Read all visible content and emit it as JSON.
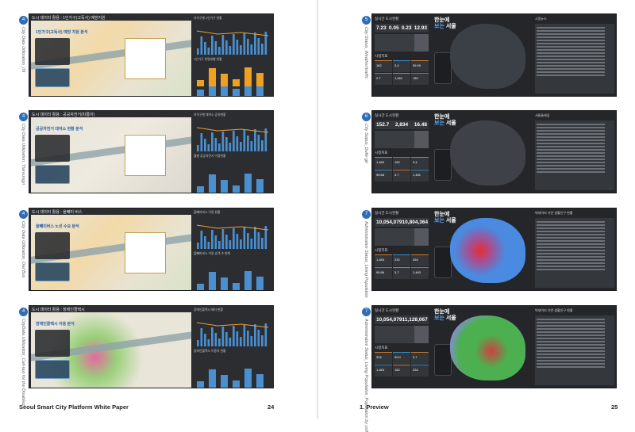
{
  "left_page": {
    "footer_title": "Seoul Smart City Platform White Paper",
    "page_number": "24",
    "entries": [
      {
        "badge": "4",
        "label": "City Data Utilization_09",
        "title": "도시 데이터 활용 : 1인가구(고독사) 예방지원",
        "headline": "1인가구(고독사) 예방 지원 분석",
        "chart1_title": "자치구별 1인가구 현황",
        "chart2_title": "1인가구 연령대별 현황"
      },
      {
        "badge": "4",
        "label": "City Data Utilization_Ttareungyi",
        "title": "도시 데이터 활용 : 공공자전거(따릉이)",
        "headline": "공공자전거 대여소 현황 분석",
        "chart1_title": "자치구별 대여소 공유현황",
        "chart2_title": "월별 공공자전거 이용현황"
      },
      {
        "badge": "4",
        "label": "City Data Utilization_Owl Bus",
        "title": "도시 데이터 활용 : 올빼미 버스",
        "headline": "올빼미버스 노선 수요 분석",
        "chart1_title": "올빼미버스 이용 현황",
        "chart2_title": "올빼미버스 이용 승객 수 변화"
      },
      {
        "badge": "4",
        "label": "CityData Utilization_Call-taxi for the Disabled",
        "title": "도시 데이터 활용 : 장애인콜택시",
        "headline": "장애인콜택시 이용 분석",
        "chart1_title": "장애인콜택시 배차 현황",
        "chart2_title": "장애인콜택시 이용자 현황"
      }
    ]
  },
  "right_page": {
    "footer_title": "1. Preview",
    "page_number": "25",
    "entries": [
      {
        "badge": "5",
        "label": "City Status_Weather/traffic",
        "panel_title": "실시간 도시현황",
        "kpis": [
          "7.23",
          "0.05",
          "0.23",
          "12.93"
        ],
        "headline_1": "한눈에",
        "headline_2a": "보는",
        "headline_2b": "서울",
        "section": "시정지표",
        "cells": [
          "182",
          "3.4",
          "95.99",
          "2.7",
          "1,481",
          "182"
        ],
        "right_title": "시정뉴스",
        "map_color": "#3b3f46"
      },
      {
        "badge": "6",
        "label": "City Status_Dulle-gil",
        "panel_title": "실시간 도시현황",
        "kpis": [
          "152.7",
          "2,834",
          "16.48"
        ],
        "headline_1": "한눈에",
        "headline_2a": "보는",
        "headline_2b": "서울",
        "section": "시정지표",
        "cells": [
          "1,463",
          "182",
          "3.4",
          "95.66",
          "3.7",
          "1,481"
        ],
        "right_title": "서울둘레길",
        "map_color": "#3e4248"
      },
      {
        "badge": "7",
        "label": "Administrative Status_Living Population",
        "panel_title": "실시간 도시현황",
        "kpis": [
          "10,054,079",
          "10,804,364"
        ],
        "headline_1": "한눈에",
        "headline_2a": "보는",
        "headline_2b": "서울",
        "section": "시정지표",
        "cells": [
          "1,463",
          "332",
          "354",
          "95.66",
          "3.7",
          "1,463"
        ],
        "right_title": "빅데이터 기반 생활인구 현황",
        "map_color": "#4a6fd6"
      },
      {
        "badge": "7",
        "label": "Administrative Status_Living Population_Population by cell",
        "panel_title": "실시간 도시현황",
        "kpis": [
          "10,054,079",
          "11,128,067"
        ],
        "headline_1": "한눈에",
        "headline_2a": "보는",
        "headline_2b": "서울",
        "section": "시정지표",
        "cells": [
          "334",
          "90.0",
          "3.7",
          "1,463",
          "182",
          "334"
        ],
        "right_title": "빅데이터 기반 생활인구 현황",
        "map_color": "#4caf50"
      }
    ]
  }
}
